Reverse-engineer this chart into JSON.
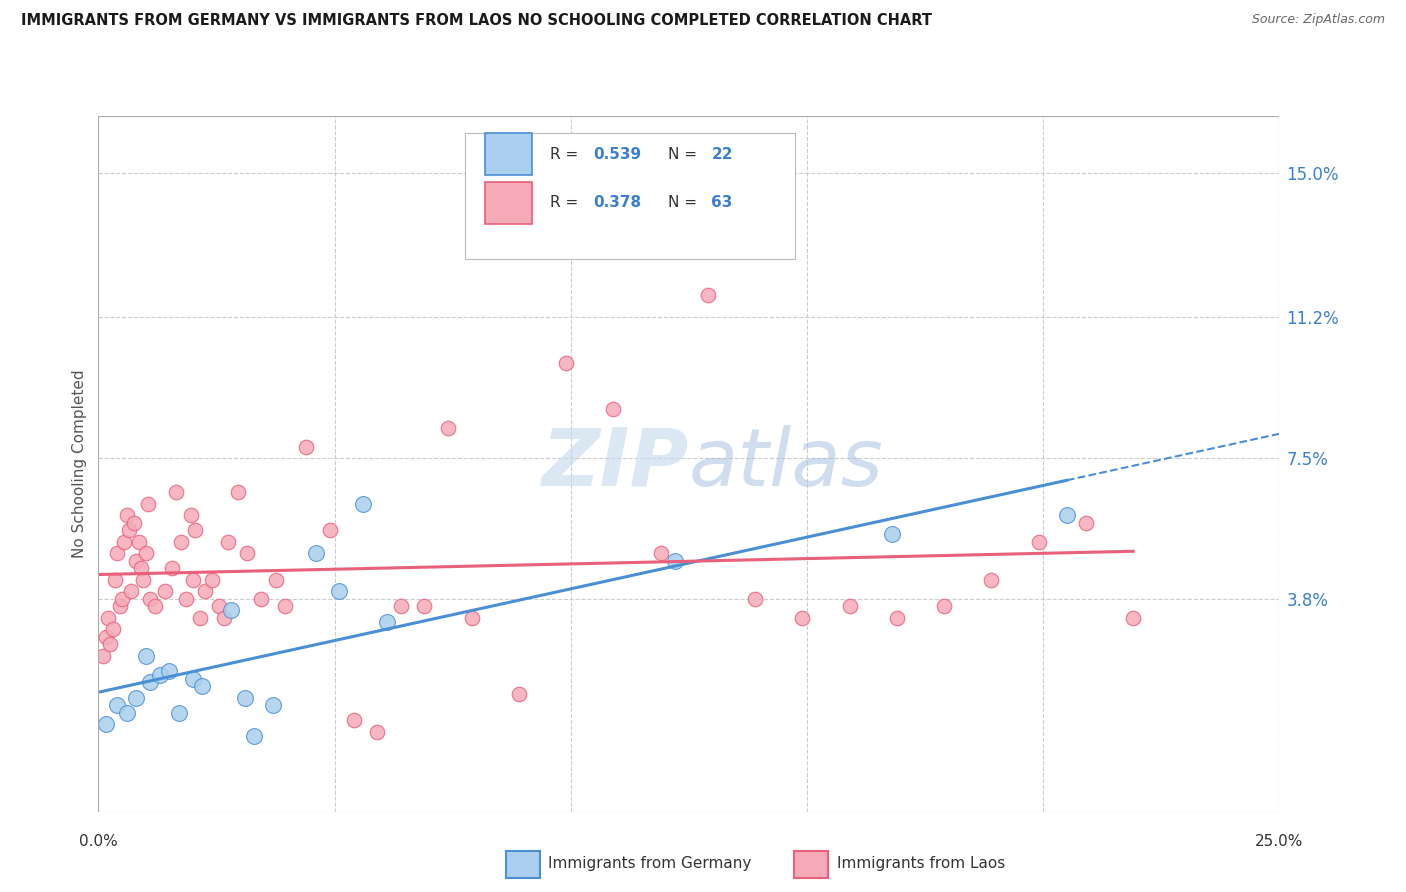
{
  "title": "IMMIGRANTS FROM GERMANY VS IMMIGRANTS FROM LAOS NO SCHOOLING COMPLETED CORRELATION CHART",
  "source": "Source: ZipAtlas.com",
  "ylabel": "No Schooling Completed",
  "ytick_values": [
    3.8,
    7.5,
    11.2,
    15.0
  ],
  "xlim": [
    0.0,
    25.0
  ],
  "ylim": [
    -1.8,
    16.5
  ],
  "germany_color": "#aacfee",
  "laos_color": "#f5aab8",
  "germany_line_color": "#4a8fd4",
  "laos_line_color": "#e8607a",
  "watermark_zip": "ZIP",
  "watermark_atlas": "atlas",
  "germany_scatter_x": [
    0.15,
    0.4,
    0.6,
    0.8,
    1.0,
    1.1,
    1.3,
    1.5,
    1.7,
    2.0,
    2.2,
    2.8,
    3.1,
    3.3,
    3.7,
    4.6,
    5.1,
    5.6,
    6.1,
    12.2,
    16.8,
    20.5
  ],
  "germany_scatter_y": [
    0.5,
    1.0,
    0.8,
    1.2,
    2.3,
    1.6,
    1.8,
    1.9,
    0.8,
    1.7,
    1.5,
    3.5,
    1.2,
    0.2,
    1.0,
    5.0,
    4.0,
    6.3,
    3.2,
    4.8,
    5.5,
    6.0
  ],
  "laos_scatter_x": [
    0.1,
    0.15,
    0.2,
    0.25,
    0.3,
    0.35,
    0.4,
    0.45,
    0.5,
    0.55,
    0.6,
    0.65,
    0.7,
    0.75,
    0.8,
    0.85,
    0.9,
    0.95,
    1.0,
    1.05,
    1.1,
    1.2,
    1.4,
    1.55,
    1.65,
    1.75,
    1.85,
    1.95,
    2.0,
    2.05,
    2.15,
    2.25,
    2.4,
    2.55,
    2.65,
    2.75,
    2.95,
    3.15,
    3.45,
    3.75,
    3.95,
    4.4,
    4.9,
    5.4,
    5.9,
    6.4,
    6.9,
    7.4,
    7.9,
    8.9,
    9.9,
    10.9,
    11.9,
    12.9,
    13.9,
    14.9,
    15.9,
    16.9,
    17.9,
    18.9,
    19.9,
    20.9,
    21.9
  ],
  "laos_scatter_y": [
    2.3,
    2.8,
    3.3,
    2.6,
    3.0,
    4.3,
    5.0,
    3.6,
    3.8,
    5.3,
    6.0,
    5.6,
    4.0,
    5.8,
    4.8,
    5.3,
    4.6,
    4.3,
    5.0,
    6.3,
    3.8,
    3.6,
    4.0,
    4.6,
    6.6,
    5.3,
    3.8,
    6.0,
    4.3,
    5.6,
    3.3,
    4.0,
    4.3,
    3.6,
    3.3,
    5.3,
    6.6,
    5.0,
    3.8,
    4.3,
    3.6,
    7.8,
    5.6,
    0.6,
    0.3,
    3.6,
    3.6,
    8.3,
    3.3,
    1.3,
    10.0,
    8.8,
    5.0,
    11.8,
    3.8,
    3.3,
    3.6,
    3.3,
    3.6,
    4.3,
    5.3,
    5.8,
    3.3
  ]
}
